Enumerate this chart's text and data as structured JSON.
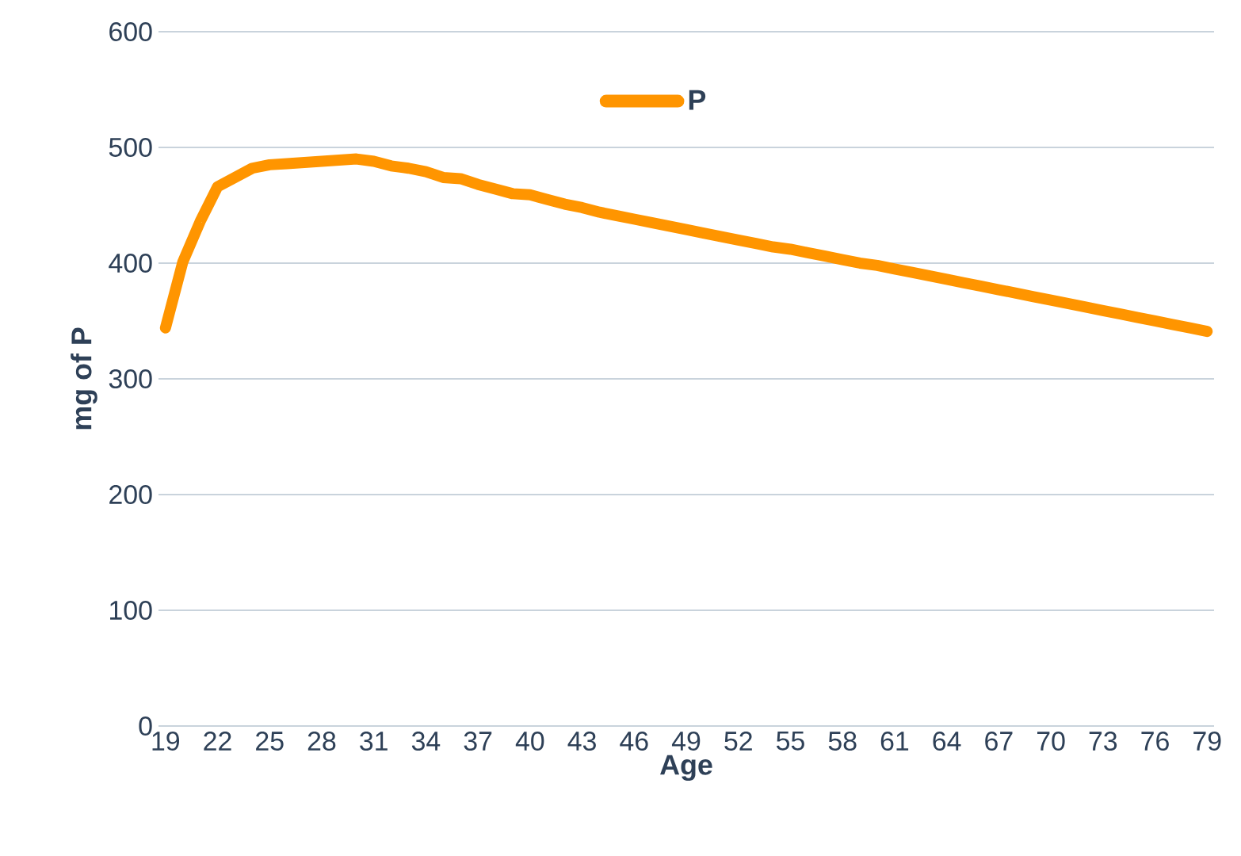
{
  "chart_data": {
    "type": "line",
    "xlabel": "Age",
    "ylabel": "mg of P",
    "x": [
      19,
      20,
      21,
      22,
      23,
      24,
      25,
      26,
      27,
      28,
      29,
      30,
      31,
      32,
      33,
      34,
      35,
      36,
      37,
      38,
      39,
      40,
      41,
      42,
      43,
      44,
      45,
      46,
      47,
      48,
      49,
      50,
      51,
      52,
      53,
      54,
      55,
      56,
      57,
      58,
      59,
      60,
      61,
      62,
      63,
      64,
      65,
      66,
      67,
      68,
      69,
      70,
      71,
      72,
      73,
      74,
      75,
      76,
      77,
      78,
      79
    ],
    "series": [
      {
        "name": "P",
        "color": "#ff9500",
        "values": [
          344,
          401,
          436,
          466,
          474,
          482,
          485,
          486,
          487,
          488,
          489,
          490,
          488,
          484,
          482,
          479,
          474,
          473,
          468,
          464,
          460,
          459,
          455,
          451,
          448,
          444,
          441,
          438,
          435,
          432,
          429,
          426,
          423,
          420,
          417,
          414,
          412,
          409,
          406,
          403,
          400,
          398,
          395,
          392,
          389,
          386,
          383,
          380,
          377,
          374,
          371,
          368,
          365,
          362,
          359,
          356,
          353,
          350,
          347,
          344,
          341
        ]
      }
    ],
    "xlim": [
      18.6,
      79.4
    ],
    "ylim": [
      0,
      600
    ],
    "xticks": [
      19,
      22,
      25,
      28,
      31,
      34,
      37,
      40,
      43,
      46,
      49,
      52,
      55,
      58,
      61,
      64,
      67,
      70,
      73,
      76,
      79
    ],
    "yticks": [
      0,
      100,
      200,
      300,
      400,
      500,
      600
    ],
    "grid": "y",
    "legend": "top",
    "marker": "none",
    "line_style": "solid"
  }
}
